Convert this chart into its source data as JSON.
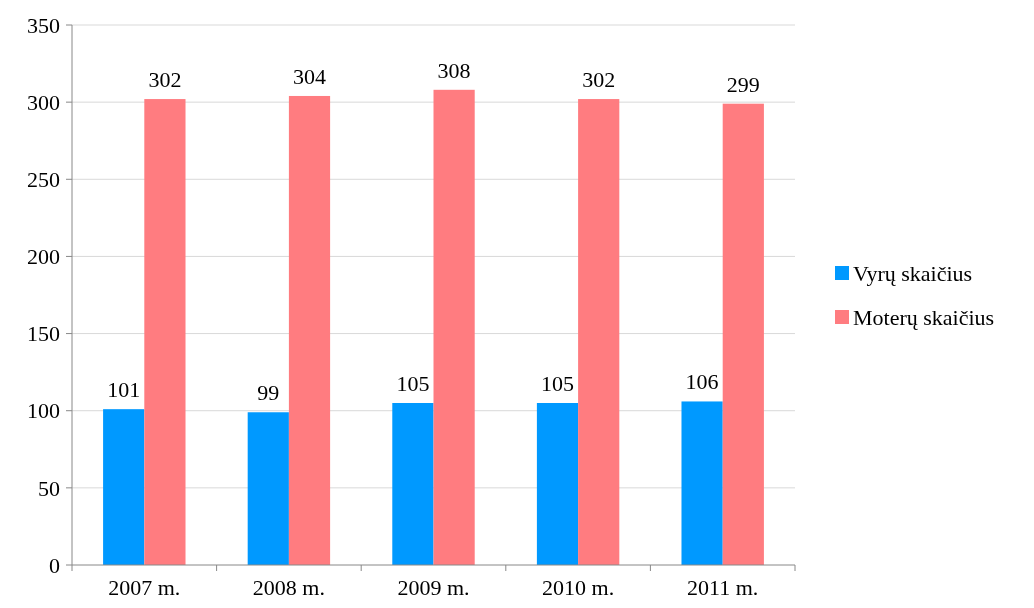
{
  "chart_data": {
    "type": "bar",
    "categories": [
      "2007 m.",
      "2008 m.",
      "2009 m.",
      "2010 m.",
      "2011 m."
    ],
    "series": [
      {
        "name": "Vyrų skaičius",
        "color": "#0099ff",
        "values": [
          101,
          99,
          105,
          105,
          106
        ]
      },
      {
        "name": "Moterų skaičius",
        "color": "#ff7c80",
        "values": [
          302,
          304,
          308,
          302,
          299
        ]
      }
    ],
    "ylim": [
      0,
      350
    ],
    "yticks": [
      0,
      50,
      100,
      150,
      200,
      250,
      300,
      350
    ],
    "grid": "y",
    "legend": "right",
    "data_labels": true
  }
}
